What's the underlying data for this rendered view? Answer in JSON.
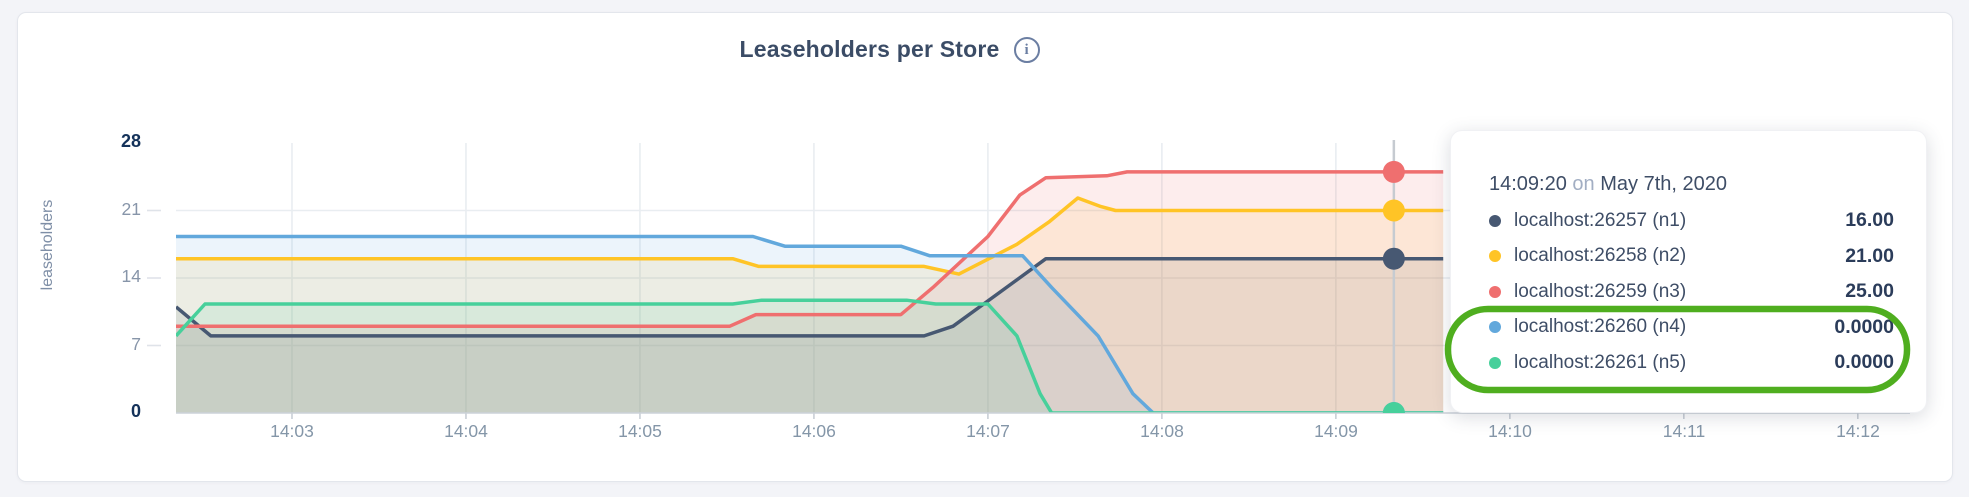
{
  "header": {
    "title": "Leaseholders per Store",
    "info_icon_glyph": "i"
  },
  "chart_data": {
    "type": "area",
    "title": "Leaseholders per Store",
    "ylabel": "leaseholders",
    "ylim": [
      0,
      28
    ],
    "y_ticks": [
      0,
      7,
      14,
      21,
      28
    ],
    "x_ticks": [
      "14:03",
      "14:04",
      "14:05",
      "14:06",
      "14:07",
      "14:08",
      "14:09",
      "14:10",
      "14:11",
      "14:12"
    ],
    "grid": "on",
    "note": "x values are seconds after 14:02:00; data spans ~14:02:20 to ~14:09:37",
    "series": [
      {
        "name": "localhost:26257 (n1)",
        "color": "#475872",
        "points": [
          [
            20,
            11
          ],
          [
            32,
            8
          ],
          [
            278,
            8
          ],
          [
            288,
            9
          ],
          [
            304,
            12.5
          ],
          [
            320,
            16
          ],
          [
            457,
            16
          ]
        ]
      },
      {
        "name": "localhost:26258 (n2)",
        "color": "#ffc426",
        "points": [
          [
            20,
            16
          ],
          [
            212,
            16
          ],
          [
            221,
            15.2
          ],
          [
            278,
            15.2
          ],
          [
            290,
            14.4
          ],
          [
            310,
            17.5
          ],
          [
            321,
            19.8
          ],
          [
            331,
            22.3
          ],
          [
            339,
            21.4
          ],
          [
            344,
            21
          ],
          [
            457,
            21
          ]
        ]
      },
      {
        "name": "localhost:26259 (n3)",
        "color": "#ef6f6f",
        "points": [
          [
            20,
            9
          ],
          [
            211,
            9
          ],
          [
            220,
            10.2
          ],
          [
            270,
            10.2
          ],
          [
            281,
            13
          ],
          [
            300,
            18.3
          ],
          [
            311,
            22.6
          ],
          [
            320,
            24.4
          ],
          [
            341,
            24.6
          ],
          [
            348,
            25
          ],
          [
            457,
            25
          ]
        ]
      },
      {
        "name": "localhost:26260 (n4)",
        "color": "#62a8dc",
        "points": [
          [
            20,
            18.3
          ],
          [
            219,
            18.3
          ],
          [
            230,
            17.3
          ],
          [
            270,
            17.3
          ],
          [
            280,
            16.3
          ],
          [
            312,
            16.3
          ],
          [
            322,
            13
          ],
          [
            338,
            8
          ],
          [
            350,
            2
          ],
          [
            357,
            0
          ],
          [
            457,
            0
          ]
        ]
      },
      {
        "name": "localhost:26261 (n5)",
        "color": "#47d09b",
        "points": [
          [
            20,
            8
          ],
          [
            30,
            11.3
          ],
          [
            212,
            11.3
          ],
          [
            222,
            11.7
          ],
          [
            272,
            11.7
          ],
          [
            282,
            11.3
          ],
          [
            300,
            11.3
          ],
          [
            310,
            8
          ],
          [
            318,
            2
          ],
          [
            322,
            0
          ],
          [
            457,
            0
          ]
        ]
      }
    ],
    "hover": {
      "t": 440,
      "values": [
        16,
        21,
        25,
        0,
        0
      ],
      "line_color": "#c6cbd1"
    }
  },
  "tooltip": {
    "time": "14:09:20",
    "on_word": "on",
    "date": "May 7th, 2020",
    "rows": [
      {
        "label": "localhost:26257 (n1)",
        "value": "16.00",
        "color": "#475872",
        "highlighted": false
      },
      {
        "label": "localhost:26258 (n2)",
        "value": "21.00",
        "color": "#ffc426",
        "highlighted": false
      },
      {
        "label": "localhost:26259 (n3)",
        "value": "25.00",
        "color": "#ef6f6f",
        "highlighted": false
      },
      {
        "label": "localhost:26260 (n4)",
        "value": "0.0000",
        "color": "#62a8dc",
        "highlighted": true
      },
      {
        "label": "localhost:26261 (n5)",
        "value": "0.0000",
        "color": "#47d09b",
        "highlighted": true
      }
    ],
    "annotation_color": "#4fae1f"
  }
}
